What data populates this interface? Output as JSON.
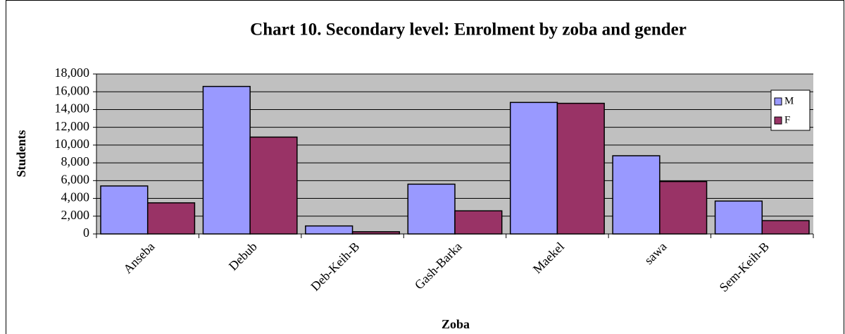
{
  "chart_data": {
    "type": "bar",
    "title": "Chart 10. Secondary level: Enrolment by zoba and gender",
    "x_label": "Zoba",
    "y_label": "Students",
    "categories": [
      "Anseba",
      "Debub",
      "Deb-Keih-B",
      "Gash-Barka",
      "Maekel",
      "sawa",
      "Sem-Keih-B"
    ],
    "series": [
      {
        "name": "M",
        "color": "#9999ff",
        "values": [
          5400,
          16600,
          900,
          5600,
          14800,
          8800,
          3700
        ]
      },
      {
        "name": "F",
        "color": "#993366",
        "values": [
          3500,
          10900,
          250,
          2600,
          14700,
          5900,
          1500
        ]
      }
    ],
    "ylim": [
      0,
      18000
    ],
    "yticks": [
      0,
      {
        "value": 2000,
        "label": "2,000"
      },
      {
        "value": 4000,
        "label": "4,000"
      },
      {
        "value": 6000,
        "label": "6,000"
      },
      {
        "value": 8000,
        "label": "8,000"
      },
      {
        "value": 10000,
        "label": "10,000"
      },
      {
        "value": 12000,
        "label": "12,000"
      },
      {
        "value": 14000,
        "label": "14,000"
      },
      {
        "value": 16000,
        "label": "16,000"
      },
      {
        "value": 18000,
        "label": "18,000"
      }
    ],
    "grid": true,
    "legend": "right",
    "plot_background": "#c0c0c0"
  }
}
